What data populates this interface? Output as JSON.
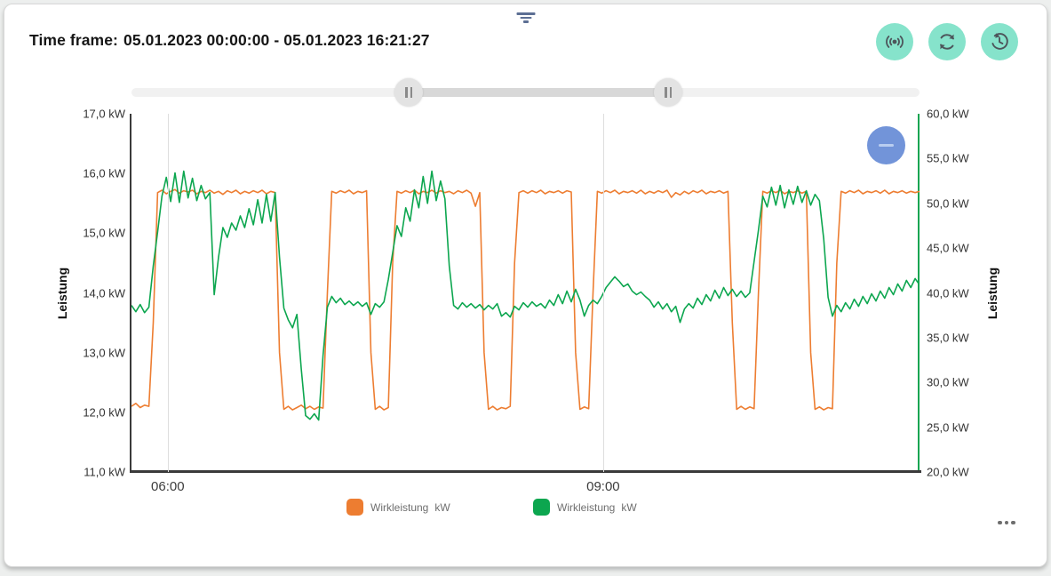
{
  "header": {
    "label": "Time frame:",
    "value": "05.01.2023 00:00:00 - 05.01.2023 16:21:27"
  },
  "toolbar": {
    "buttons": [
      {
        "icon": "live-signal"
      },
      {
        "icon": "refresh"
      },
      {
        "icon": "history-clock"
      }
    ]
  },
  "top_icon": "filter-funnel",
  "range_slider": {
    "start_percent": 35.2,
    "end_percent": 68.1
  },
  "zoom_control": {
    "icon": "minus"
  },
  "more_options": {
    "icon": "ellipsis"
  },
  "colors": {
    "accent_teal": "#86E3CB",
    "zoom_button_blue": "#7294D9",
    "orange_series": "#ED7D31",
    "green_series": "#0CA64F",
    "axis_dark": "#3A3A3A",
    "right_axis_green": "#14A551",
    "grid": "#DEDEDE"
  },
  "chart_data": {
    "type": "line",
    "x_axis": {
      "min": 5.75,
      "max": 11.18,
      "start": 5.75,
      "step": 0.03,
      "unit": "hour-of-day",
      "ticks": [
        {
          "value": 6,
          "label": "06:00"
        },
        {
          "value": 9,
          "label": "09:00"
        }
      ],
      "gridlines": true
    },
    "y_left": {
      "title": "Leistung",
      "min": 11,
      "max": 17,
      "ticks": [
        "17,0 kW",
        "16,0 kW",
        "15,0 kW",
        "14,0 kW",
        "13,0 kW",
        "12,0 kW",
        "11,0 kW"
      ]
    },
    "y_right": {
      "title": "Leistung",
      "min": 20,
      "max": 60,
      "ticks": [
        "60,0 kW",
        "55,0 kW",
        "50,0 kW",
        "45,0 kW",
        "40,0 kW",
        "35,0 kW",
        "30,0 kW",
        "25,0 kW",
        "20,0 kW"
      ]
    },
    "legend_position": "bottom",
    "series": [
      {
        "name": "Wirkleistung",
        "unit": "kW",
        "axis": "left",
        "color": "#ED7D31",
        "values": [
          12.1,
          12.15,
          12.08,
          12.12,
          12.1,
          13.5,
          15.68,
          15.72,
          15.66,
          15.7,
          15.73,
          15.67,
          15.71,
          15.69,
          15.72,
          15.66,
          15.7,
          15.68,
          15.72,
          15.67,
          15.7,
          15.65,
          15.71,
          15.68,
          15.72,
          15.66,
          15.7,
          15.67,
          15.71,
          15.68,
          15.72,
          15.66,
          15.7,
          15.68,
          13.0,
          12.05,
          12.1,
          12.04,
          12.08,
          12.12,
          12.06,
          12.1,
          12.05,
          12.09,
          12.07,
          14.0,
          15.7,
          15.67,
          15.71,
          15.68,
          15.72,
          15.66,
          15.7,
          15.68,
          15.71,
          13.0,
          12.05,
          12.1,
          12.04,
          12.08,
          14.5,
          15.7,
          15.67,
          15.71,
          15.68,
          15.72,
          15.66,
          15.7,
          15.68,
          15.72,
          15.67,
          15.71,
          15.68,
          15.7,
          15.66,
          15.71,
          15.68,
          15.72,
          15.67,
          15.45,
          15.68,
          13.0,
          12.05,
          12.1,
          12.04,
          12.08,
          12.06,
          12.1,
          14.5,
          15.68,
          15.71,
          15.67,
          15.71,
          15.68,
          15.72,
          15.66,
          15.7,
          15.68,
          15.71,
          15.67,
          15.71,
          15.69,
          13.0,
          12.05,
          12.09,
          12.06,
          14.0,
          15.7,
          15.67,
          15.71,
          15.68,
          15.72,
          15.66,
          15.7,
          15.68,
          15.71,
          15.67,
          15.72,
          15.66,
          15.7,
          15.67,
          15.71,
          15.68,
          15.72,
          15.6,
          15.68,
          15.64,
          15.7,
          15.66,
          15.71,
          15.68,
          15.72,
          15.66,
          15.7,
          15.68,
          15.71,
          15.67,
          15.7,
          13.5,
          12.05,
          12.1,
          12.05,
          12.09,
          12.06,
          14.0,
          15.7,
          15.67,
          15.71,
          15.68,
          15.72,
          15.66,
          15.7,
          15.68,
          15.71,
          15.67,
          15.7,
          13.0,
          12.05,
          12.09,
          12.04,
          12.08,
          12.06,
          14.5,
          15.7,
          15.67,
          15.71,
          15.68,
          15.72,
          15.66,
          15.7,
          15.68,
          15.71,
          15.67,
          15.72,
          15.66,
          15.7,
          15.68,
          15.71,
          15.67,
          15.7,
          15.68,
          15.7
        ]
      },
      {
        "name": "Wirkleistung",
        "unit": "kW",
        "axis": "right",
        "color": "#0CA64F",
        "values": [
          38.6,
          37.9,
          38.7,
          37.8,
          38.4,
          43.0,
          46.8,
          50.8,
          52.9,
          50.2,
          53.4,
          50.1,
          53.6,
          50.6,
          52.8,
          50.3,
          52.0,
          50.5,
          51.2,
          39.8,
          44.0,
          47.3,
          46.2,
          47.8,
          47.0,
          48.6,
          47.3,
          49.4,
          47.6,
          50.4,
          47.8,
          51.0,
          48.0,
          51.2,
          44.0,
          38.3,
          37.0,
          36.1,
          37.6,
          31.5,
          26.3,
          25.9,
          26.5,
          25.8,
          33.0,
          38.4,
          39.6,
          38.9,
          39.4,
          38.7,
          39.1,
          38.6,
          39.0,
          38.5,
          38.9,
          37.6,
          38.8,
          38.4,
          39.0,
          41.5,
          44.5,
          47.5,
          46.3,
          49.5,
          48.0,
          51.5,
          49.5,
          53.0,
          50.0,
          53.6,
          50.3,
          52.5,
          50.5,
          43.0,
          38.6,
          38.2,
          38.9,
          38.4,
          38.8,
          38.3,
          38.7,
          38.1,
          38.6,
          38.2,
          38.8,
          37.4,
          37.8,
          37.3,
          38.5,
          38.1,
          38.9,
          38.4,
          39.0,
          38.5,
          38.8,
          38.3,
          39.2,
          38.6,
          39.8,
          38.8,
          40.2,
          39.0,
          40.4,
          39.2,
          37.4,
          38.6,
          39.2,
          38.8,
          39.6,
          40.6,
          41.2,
          41.8,
          41.3,
          40.7,
          41.0,
          40.2,
          39.8,
          40.1,
          39.6,
          39.2,
          38.4,
          39.0,
          38.2,
          38.8,
          37.9,
          38.5,
          36.7,
          38.2,
          38.8,
          38.3,
          39.4,
          38.7,
          39.8,
          39.1,
          40.3,
          39.4,
          40.6,
          39.7,
          40.4,
          39.6,
          40.2,
          39.5,
          40.0,
          43.5,
          47.0,
          50.8,
          49.6,
          51.8,
          49.8,
          52.0,
          49.5,
          51.5,
          49.9,
          51.9,
          50.1,
          51.4,
          49.8,
          51.0,
          50.3,
          46.0,
          39.5,
          37.4,
          38.6,
          37.9,
          38.9,
          38.2,
          39.3,
          38.5,
          39.6,
          38.8,
          39.9,
          39.1,
          40.2,
          39.4,
          40.6,
          39.8,
          41.0,
          40.2,
          41.4,
          40.6,
          41.6,
          40.9
        ]
      }
    ]
  }
}
